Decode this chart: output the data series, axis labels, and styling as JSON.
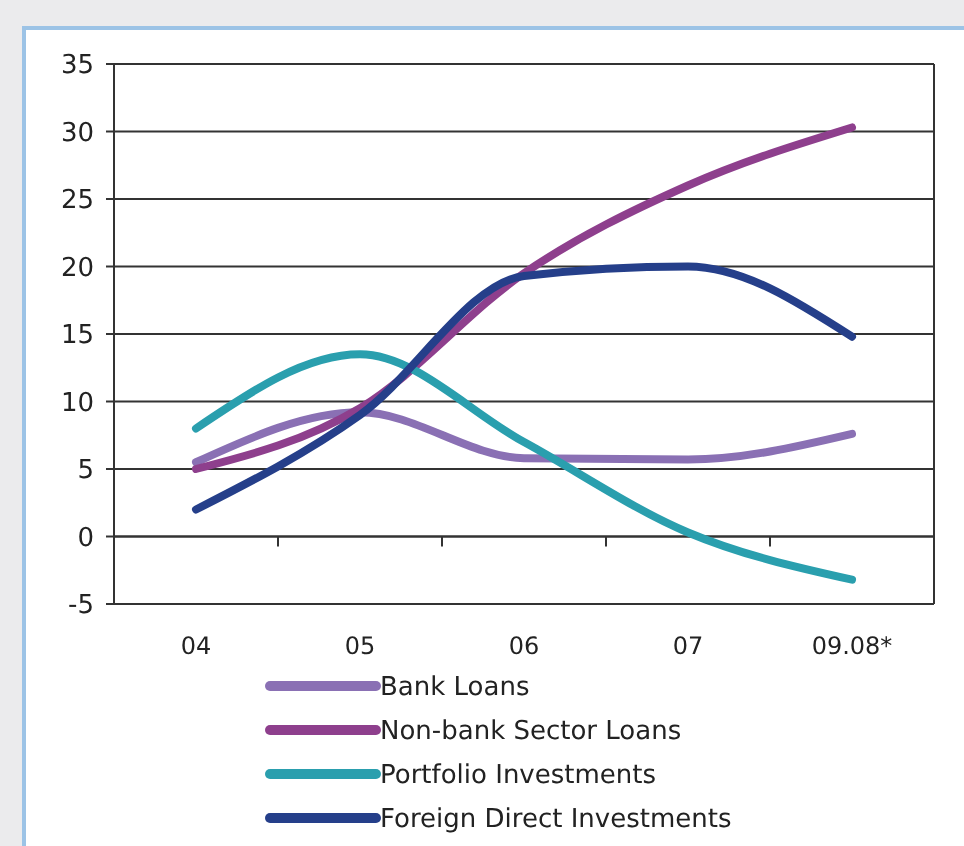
{
  "chart_data": {
    "type": "line",
    "categories": [
      "04",
      "05",
      "06",
      "07",
      "09.08*"
    ],
    "series": [
      {
        "name": "Bank Loans",
        "color": "#8a70b4",
        "values": [
          5.5,
          9.2,
          5.8,
          5.7,
          7.6
        ]
      },
      {
        "name": "Non-bank Sector Loans",
        "color": "#8e3f8d",
        "values": [
          5,
          9.5,
          19.5,
          26,
          30.3
        ]
      },
      {
        "name": "Portfolio Investments",
        "color": "#2a9fae",
        "values": [
          8,
          13.5,
          7,
          0.3,
          -3.2
        ]
      },
      {
        "name": "Foreign Direct Investments",
        "color": "#253f8a",
        "values": [
          2,
          9,
          19.3,
          20,
          14.8
        ]
      }
    ],
    "ylim": [
      -5,
      35
    ],
    "yticks": [
      -5,
      0,
      5,
      10,
      15,
      20,
      25,
      30,
      35
    ],
    "grid": "y",
    "legend": "bottom",
    "marker": "none",
    "line_style": "solid"
  }
}
